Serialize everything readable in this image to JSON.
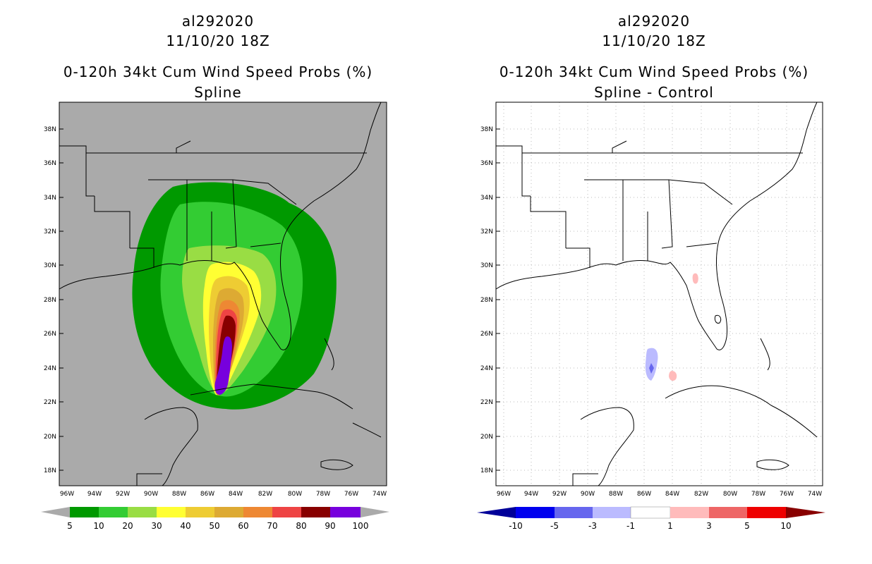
{
  "left_panel": {
    "storm_id": "al292020",
    "datetime": "11/10/20 18Z",
    "product": "0-120h 34kt Cum Wind Speed Probs (%)",
    "subtitle": "Spline",
    "lat_labels": [
      "38N",
      "36N",
      "34N",
      "32N",
      "30N",
      "28N",
      "26N",
      "24N",
      "22N",
      "20N",
      "18N"
    ],
    "lon_labels": [
      "96W",
      "94W",
      "92W",
      "90W",
      "88W",
      "86W",
      "84W",
      "82W",
      "80W",
      "78W",
      "76W",
      "74W"
    ],
    "colorbar": {
      "labels": [
        "5",
        "10",
        "20",
        "30",
        "40",
        "50",
        "60",
        "70",
        "80",
        "90",
        "100"
      ],
      "colors": [
        "#009900",
        "#33cc33",
        "#99dd44",
        "#ffff33",
        "#eecc33",
        "#ddaa33",
        "#ee8833",
        "#ee4444",
        "#880000",
        "#7700dd"
      ]
    },
    "background_color": "#aaaaaa"
  },
  "right_panel": {
    "storm_id": "al292020",
    "datetime": "11/10/20 18Z",
    "product": "0-120h 34kt Cum Wind Speed Probs (%)",
    "subtitle": "Spline - Control",
    "lat_labels": [
      "38N",
      "36N",
      "34N",
      "32N",
      "30N",
      "28N",
      "26N",
      "24N",
      "22N",
      "20N",
      "18N"
    ],
    "lon_labels": [
      "96W",
      "94W",
      "92W",
      "90W",
      "88W",
      "86W",
      "84W",
      "82W",
      "80W",
      "78W",
      "76W",
      "74W"
    ],
    "colorbar": {
      "labels": [
        "-10",
        "-5",
        "-3",
        "-1",
        "1",
        "3",
        "5",
        "10"
      ],
      "colors": [
        "#000099",
        "#0000ee",
        "#6666ee",
        "#bbbbff",
        "#ffffff",
        "#ffbbbb",
        "#ee6666",
        "#ee0000",
        "#880000"
      ]
    },
    "background_color": "#ffffff"
  }
}
